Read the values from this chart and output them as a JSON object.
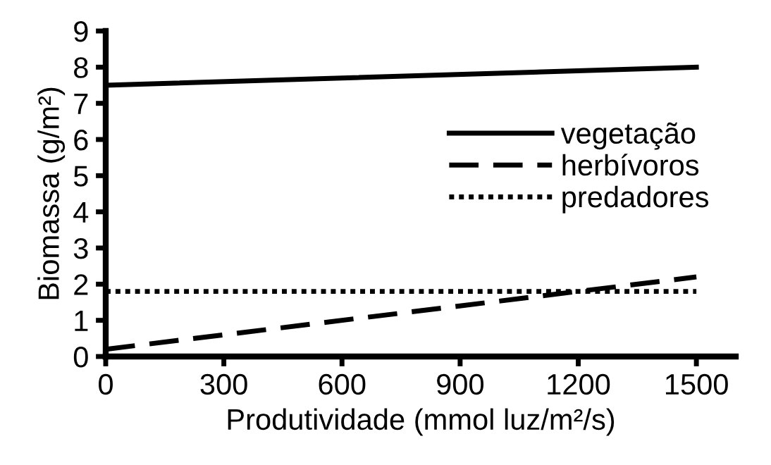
{
  "chart_data": {
    "type": "line",
    "xlabel": "Produtividade (mmol luz/m²/s)",
    "ylabel": "Biomassa (g/m²)",
    "x": [
      0,
      1500
    ],
    "series": [
      {
        "name": "vegetação",
        "color": "#000000",
        "values": [
          7.5,
          8.0
        ],
        "line_style": "solid"
      },
      {
        "name": "herbívoros",
        "color": "#000000",
        "values": [
          0.2,
          2.2
        ],
        "line_style": "dashed"
      },
      {
        "name": "predadores",
        "color": "#000000",
        "values": [
          1.8,
          1.8
        ],
        "line_style": "dotted"
      }
    ],
    "xlim": [
      0,
      1600
    ],
    "xticks": [
      0,
      300,
      600,
      900,
      1200,
      1500
    ],
    "ylim": [
      0,
      9
    ],
    "yticks": [
      0,
      1,
      2,
      3,
      4,
      5,
      6,
      7,
      8,
      9
    ],
    "grid": false,
    "legend": "right",
    "marker": "none"
  }
}
